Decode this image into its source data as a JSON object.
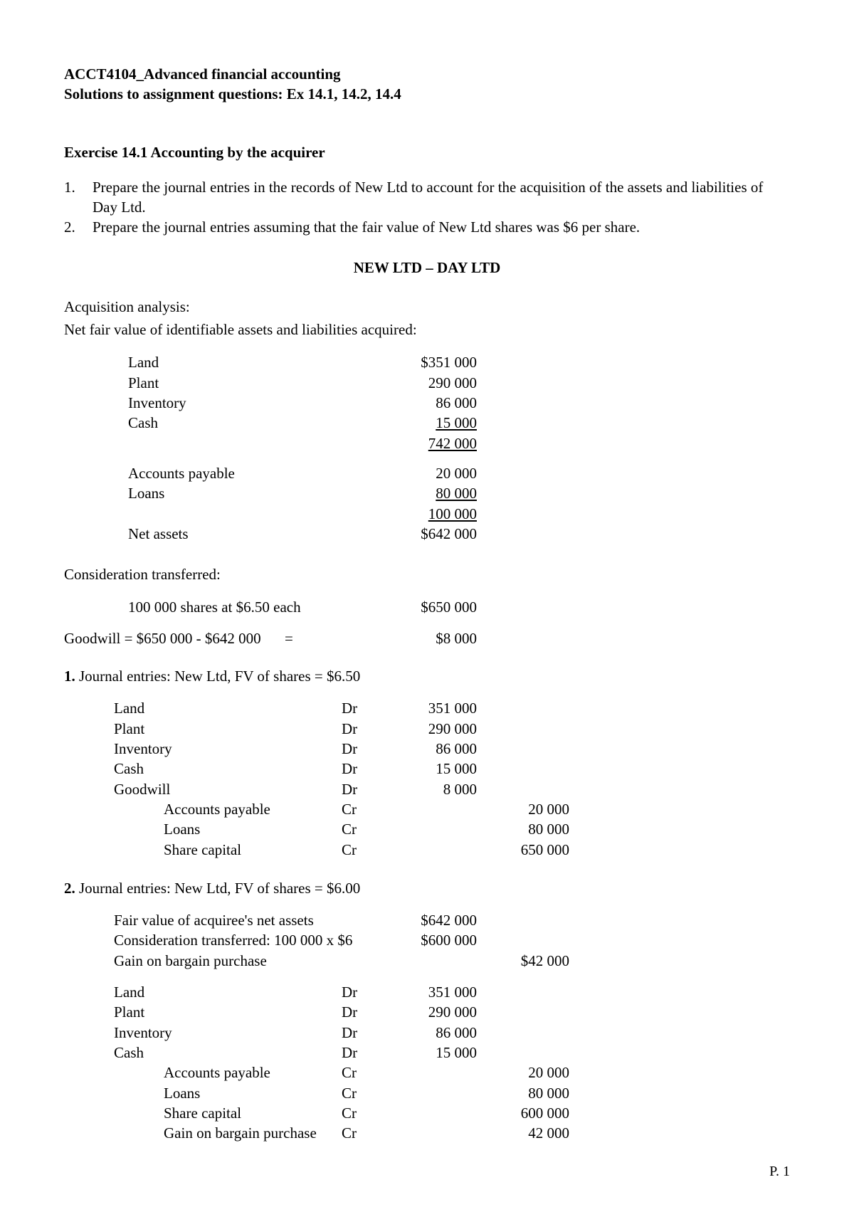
{
  "header": {
    "line1": "ACCT4104_Advanced  financial  accounting",
    "line2": "Solutions to assignment questions: Ex 14.1, 14.2, 14.4"
  },
  "ex141": {
    "title": "Exercise 14.1   Accounting by the acquirer",
    "q1": "Prepare the journal entries in the records of New Ltd to account for the acquisition of the assets and liabilities of Day Ltd.",
    "q2": "Prepare the journal entries assuming that the fair value of New Ltd shares was $6 per share.",
    "centered": "NEW LTD – DAY LTD",
    "acq_label": "Acquisition analysis:",
    "nfv_label": "Net fair value of identifiable assets and liabilities acquired:",
    "assets": {
      "land": {
        "label": "Land",
        "amt": "$351 000"
      },
      "plant": {
        "label": "Plant",
        "amt": "290 000"
      },
      "inventory": {
        "label": "Inventory",
        "amt": "86 000"
      },
      "cash": {
        "label": "Cash",
        "amt": "15 000"
      },
      "subtotal": "742 000"
    },
    "liabs": {
      "ap": {
        "label": "Accounts payable",
        "amt": "20 000"
      },
      "loans": {
        "label": "Loans",
        "amt": "80 000"
      },
      "subtotal": "100 000",
      "net_label": "Net assets",
      "net_amt": "$642 000"
    },
    "consid": {
      "heading": "Consideration transferred:",
      "desc": "100 000 shares at $6.50 each",
      "amt": "$650 000"
    },
    "goodwill": {
      "calc": "Goodwill = $650 000 - $642 000",
      "eq": "=",
      "amt": "$8 000"
    },
    "je1": {
      "heading_num": "1.",
      "heading_rest": " Journal entries: New Ltd, FV of shares = $6.50",
      "rows": [
        {
          "label": "Land",
          "drcr": "Dr",
          "amt1": "351 000",
          "amt2": ""
        },
        {
          "label": "Plant",
          "drcr": "Dr",
          "amt1": "290 000",
          "amt2": ""
        },
        {
          "label": "Inventory",
          "drcr": "Dr",
          "amt1": "86 000",
          "amt2": ""
        },
        {
          "label": "Cash",
          "drcr": "Dr",
          "amt1": "15 000",
          "amt2": ""
        },
        {
          "label": "Goodwill",
          "drcr": "Dr",
          "amt1": "8 000",
          "amt2": ""
        }
      ],
      "cr_rows": [
        {
          "label": "Accounts payable",
          "drcr": "Cr",
          "amt1": "",
          "amt2": "20 000"
        },
        {
          "label": "Loans",
          "drcr": "Cr",
          "amt1": "",
          "amt2": "80 000"
        },
        {
          "label": "Share capital",
          "drcr": "Cr",
          "amt1": "",
          "amt2": "650 000"
        }
      ]
    },
    "je2": {
      "heading_num": "2.",
      "heading_rest": " Journal entries: New Ltd, FV of shares = $6.00",
      "pre": [
        {
          "label": "Fair value of acquiree's net assets",
          "amt1": "$642 000",
          "amt2": ""
        },
        {
          "label": "Consideration transferred: 100 000 x $6",
          "amt1": "$600 000",
          "amt2": ""
        },
        {
          "label": "Gain on bargain purchase",
          "amt1": "",
          "amt2": "$42 000"
        }
      ],
      "rows": [
        {
          "label": "Land",
          "drcr": "Dr",
          "amt1": "351 000",
          "amt2": ""
        },
        {
          "label": "Plant",
          "drcr": "Dr",
          "amt1": "290 000",
          "amt2": ""
        },
        {
          "label": "Inventory",
          "drcr": "Dr",
          "amt1": "86 000",
          "amt2": ""
        },
        {
          "label": "Cash",
          "drcr": "Dr",
          "amt1": "15 000",
          "amt2": ""
        }
      ],
      "cr_rows": [
        {
          "label": "Accounts payable",
          "drcr": "Cr",
          "amt1": "",
          "amt2": "20 000"
        },
        {
          "label": "Loans",
          "drcr": "Cr",
          "amt1": "",
          "amt2": "80 000"
        },
        {
          "label": "Share capital",
          "drcr": "Cr",
          "amt1": "",
          "amt2": "600 000"
        },
        {
          "label": "Gain on bargain purchase",
          "drcr": "Cr",
          "amt1": "",
          "amt2": "42 000"
        }
      ]
    }
  },
  "page_num": "P. 1"
}
